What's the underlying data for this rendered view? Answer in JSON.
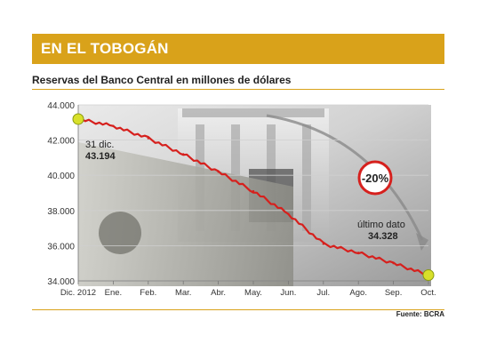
{
  "banner": {
    "title": "EN EL TOBOGÁN"
  },
  "subtitle": "Reservas del Banco Central en millones de dólares",
  "source": "Fuente: BCRA",
  "colors": {
    "accent": "#d9a21a",
    "line": "#d6201d",
    "marker": "#d8e02a",
    "badge": "#d6201d",
    "grid": "#cfcfcf"
  },
  "chart_data": {
    "type": "line",
    "title": "Reservas del Banco Central en millones de dólares",
    "xlabel": "",
    "ylabel": "",
    "categories": [
      "Dic. 2012",
      "Ene.",
      "Feb.",
      "Mar.",
      "Abr.",
      "May.",
      "Jun.",
      "Jul.",
      "Ago.",
      "Sep.",
      "Oct."
    ],
    "ylim": [
      34000,
      44000
    ],
    "yticks": [
      "34.000",
      "36.000",
      "38.000",
      "40.000",
      "42.000",
      "44.000"
    ],
    "grid": true,
    "series": [
      {
        "values": [
          43194,
          42800,
          42100,
          41200,
          40200,
          39100,
          37800,
          36100,
          35600,
          35000,
          34328
        ]
      }
    ],
    "annotations": {
      "start": {
        "label": "31 dic.",
        "value": "43.194"
      },
      "end": {
        "label": "último dato",
        "value": "34.328"
      },
      "change": "-20%"
    }
  }
}
